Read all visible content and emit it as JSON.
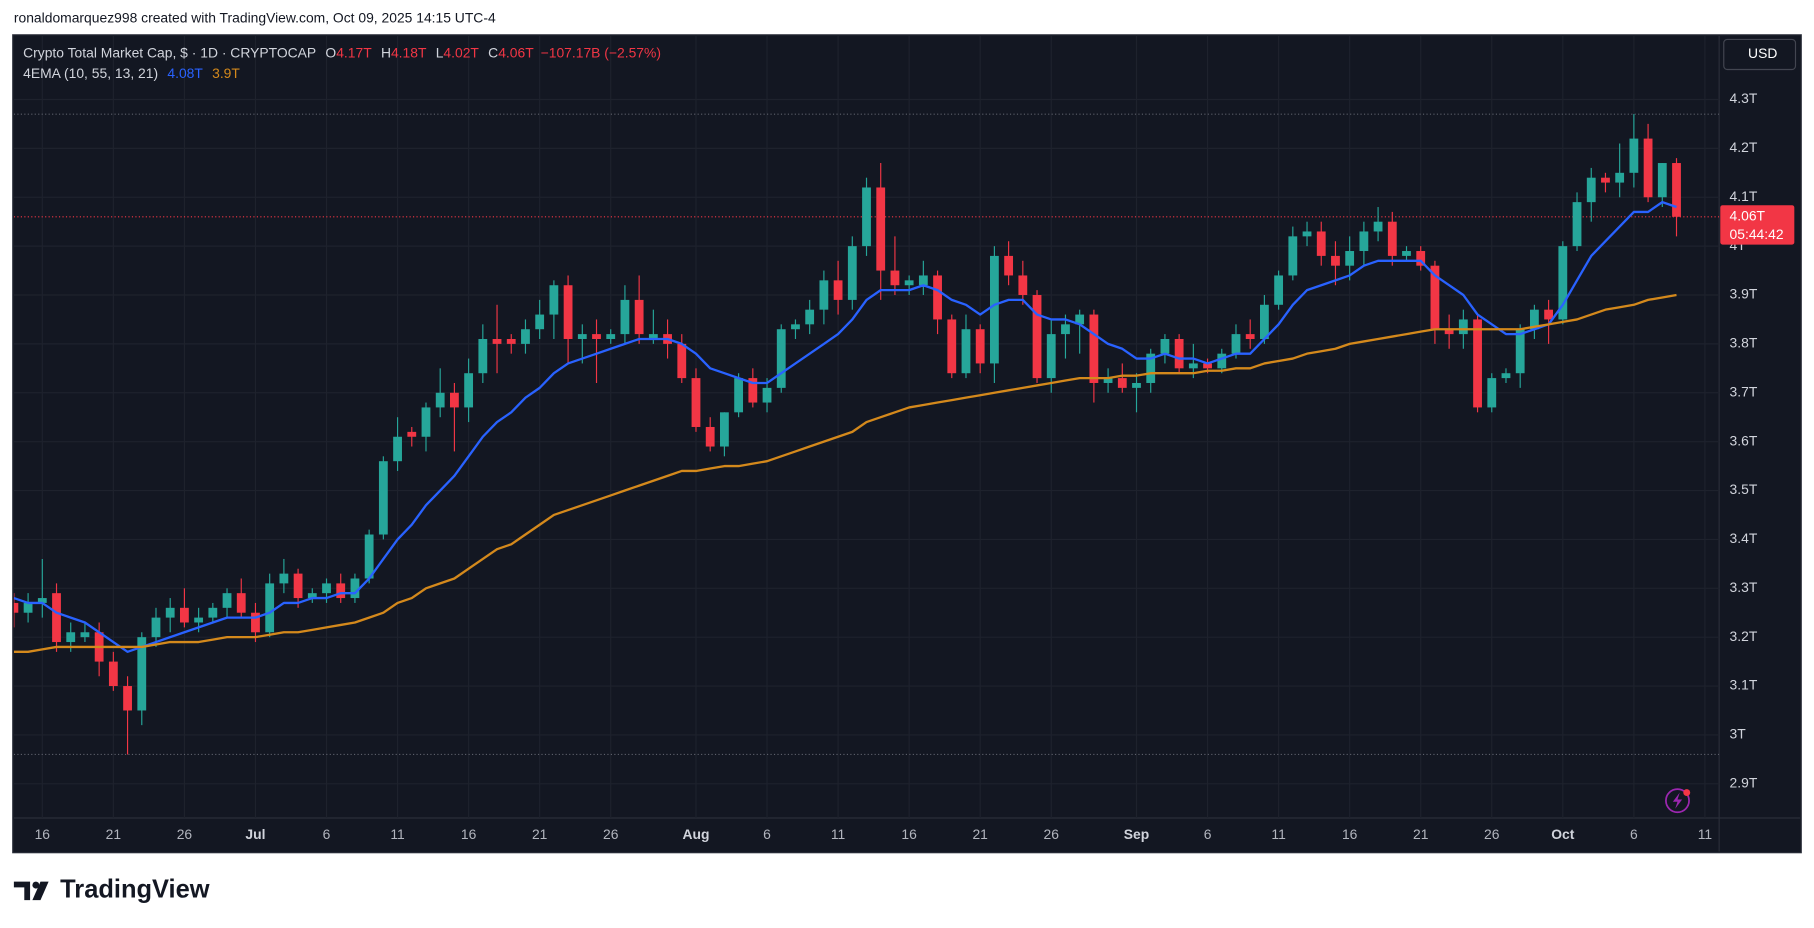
{
  "attribution": "ronaldomarquez998 created with TradingView.com, Oct 09, 2025 14:15 UTC-4",
  "currency_button": "USD",
  "logo": "TradingView",
  "chart_data": {
    "type": "candlestick",
    "title": "Crypto Total Market Cap, $ · 1D · CRYPTOCAP",
    "ohlc_legend": [
      {
        "key": "O",
        "value": "4.17T"
      },
      {
        "key": "H",
        "value": "4.18T"
      },
      {
        "key": "L",
        "value": "4.02T"
      },
      {
        "key": "C",
        "value": "4.06T"
      }
    ],
    "change": "−107.17B (−2.57%)",
    "indicator_label": "4EMA (10, 55, 13, 21)",
    "price_label": "4.06T",
    "countdown": "05:44:42",
    "up_color": "#26a69a",
    "down_color": "#f23645",
    "grid": true,
    "xlim": [
      "2025-06-14",
      "2025-10-12"
    ],
    "ylim": [
      2.83,
      4.43
    ],
    "yticks": [
      {
        "value": 2.9,
        "label": "2.9T"
      },
      {
        "value": 3.0,
        "label": "3T"
      },
      {
        "value": 3.1,
        "label": "3.1T"
      },
      {
        "value": 3.2,
        "label": "3.2T"
      },
      {
        "value": 3.3,
        "label": "3.3T"
      },
      {
        "value": 3.4,
        "label": "3.4T"
      },
      {
        "value": 3.5,
        "label": "3.5T"
      },
      {
        "value": 3.6,
        "label": "3.6T"
      },
      {
        "value": 3.7,
        "label": "3.7T"
      },
      {
        "value": 3.8,
        "label": "3.8T"
      },
      {
        "value": 3.9,
        "label": "3.9T"
      },
      {
        "value": 4.0,
        "label": "4T"
      },
      {
        "value": 4.1,
        "label": "4.1T"
      },
      {
        "value": 4.2,
        "label": "4.2T"
      },
      {
        "value": 4.3,
        "label": "4.3T"
      }
    ],
    "xticks": [
      {
        "value": "2025-06-16",
        "label": "16"
      },
      {
        "value": "2025-06-21",
        "label": "21"
      },
      {
        "value": "2025-06-26",
        "label": "26"
      },
      {
        "value": "2025-07-01",
        "label": "Jul"
      },
      {
        "value": "2025-07-06",
        "label": "6"
      },
      {
        "value": "2025-07-11",
        "label": "11"
      },
      {
        "value": "2025-07-16",
        "label": "16"
      },
      {
        "value": "2025-07-21",
        "label": "21"
      },
      {
        "value": "2025-07-26",
        "label": "26"
      },
      {
        "value": "2025-08-01",
        "label": "Aug"
      },
      {
        "value": "2025-08-06",
        "label": "6"
      },
      {
        "value": "2025-08-11",
        "label": "11"
      },
      {
        "value": "2025-08-16",
        "label": "16"
      },
      {
        "value": "2025-08-21",
        "label": "21"
      },
      {
        "value": "2025-08-26",
        "label": "26"
      },
      {
        "value": "2025-09-01",
        "label": "Sep"
      },
      {
        "value": "2025-09-06",
        "label": "6"
      },
      {
        "value": "2025-09-11",
        "label": "11"
      },
      {
        "value": "2025-09-16",
        "label": "16"
      },
      {
        "value": "2025-09-21",
        "label": "21"
      },
      {
        "value": "2025-09-26",
        "label": "26"
      },
      {
        "value": "2025-10-01",
        "label": "Oct"
      },
      {
        "value": "2025-10-06",
        "label": "6"
      },
      {
        "value": "2025-10-11",
        "label": "11"
      }
    ],
    "x": [
      "2025-06-14",
      "2025-06-15",
      "2025-06-16",
      "2025-06-17",
      "2025-06-18",
      "2025-06-19",
      "2025-06-20",
      "2025-06-21",
      "2025-06-22",
      "2025-06-23",
      "2025-06-24",
      "2025-06-25",
      "2025-06-26",
      "2025-06-27",
      "2025-06-28",
      "2025-06-29",
      "2025-06-30",
      "2025-07-01",
      "2025-07-02",
      "2025-07-03",
      "2025-07-04",
      "2025-07-05",
      "2025-07-06",
      "2025-07-07",
      "2025-07-08",
      "2025-07-09",
      "2025-07-10",
      "2025-07-11",
      "2025-07-12",
      "2025-07-13",
      "2025-07-14",
      "2025-07-15",
      "2025-07-16",
      "2025-07-17",
      "2025-07-18",
      "2025-07-19",
      "2025-07-20",
      "2025-07-21",
      "2025-07-22",
      "2025-07-23",
      "2025-07-24",
      "2025-07-25",
      "2025-07-26",
      "2025-07-27",
      "2025-07-28",
      "2025-07-29",
      "2025-07-30",
      "2025-07-31",
      "2025-08-01",
      "2025-08-02",
      "2025-08-03",
      "2025-08-04",
      "2025-08-05",
      "2025-08-06",
      "2025-08-07",
      "2025-08-08",
      "2025-08-09",
      "2025-08-10",
      "2025-08-11",
      "2025-08-12",
      "2025-08-13",
      "2025-08-14",
      "2025-08-15",
      "2025-08-16",
      "2025-08-17",
      "2025-08-18",
      "2025-08-19",
      "2025-08-20",
      "2025-08-21",
      "2025-08-22",
      "2025-08-23",
      "2025-08-24",
      "2025-08-25",
      "2025-08-26",
      "2025-08-27",
      "2025-08-28",
      "2025-08-29",
      "2025-08-30",
      "2025-08-31",
      "2025-09-01",
      "2025-09-02",
      "2025-09-03",
      "2025-09-04",
      "2025-09-05",
      "2025-09-06",
      "2025-09-07",
      "2025-09-08",
      "2025-09-09",
      "2025-09-10",
      "2025-09-11",
      "2025-09-12",
      "2025-09-13",
      "2025-09-14",
      "2025-09-15",
      "2025-09-16",
      "2025-09-17",
      "2025-09-18",
      "2025-09-19",
      "2025-09-20",
      "2025-09-21",
      "2025-09-22",
      "2025-09-23",
      "2025-09-24",
      "2025-09-25",
      "2025-09-26",
      "2025-09-27",
      "2025-09-28",
      "2025-09-29",
      "2025-09-30",
      "2025-10-01",
      "2025-10-02",
      "2025-10-03",
      "2025-10-04",
      "2025-10-05",
      "2025-10-06",
      "2025-10-07",
      "2025-10-08",
      "2025-10-09"
    ],
    "open": [
      3.27,
      3.25,
      3.27,
      3.29,
      3.19,
      3.2,
      3.21,
      3.15,
      3.1,
      3.05,
      3.2,
      3.24,
      3.26,
      3.23,
      3.24,
      3.26,
      3.29,
      3.25,
      3.21,
      3.31,
      3.33,
      3.28,
      3.29,
      3.31,
      3.28,
      3.32,
      3.41,
      3.56,
      3.62,
      3.61,
      3.67,
      3.7,
      3.67,
      3.74,
      3.81,
      3.81,
      3.8,
      3.83,
      3.86,
      3.92,
      3.81,
      3.82,
      3.81,
      3.82,
      3.89,
      3.81,
      3.82,
      3.8,
      3.73,
      3.63,
      3.59,
      3.66,
      3.73,
      3.68,
      3.71,
      3.83,
      3.84,
      3.87,
      3.93,
      3.89,
      4.0,
      4.12,
      3.95,
      3.92,
      3.92,
      3.94,
      3.85,
      3.74,
      3.83,
      3.76,
      3.98,
      3.94,
      3.9,
      3.73,
      3.82,
      3.84,
      3.86,
      3.72,
      3.73,
      3.71,
      3.72,
      3.78,
      3.81,
      3.75,
      3.76,
      3.75,
      3.78,
      3.82,
      3.81,
      3.88,
      3.94,
      4.02,
      4.03,
      3.98,
      3.96,
      3.99,
      4.03,
      4.05,
      3.98,
      3.99,
      3.96,
      3.83,
      3.82,
      3.85,
      3.67,
      3.73,
      3.74,
      3.83,
      3.87,
      3.85,
      4.0,
      4.09,
      4.14,
      4.13,
      4.15,
      4.22,
      4.1,
      4.17
    ],
    "high": [
      3.29,
      3.29,
      3.36,
      3.31,
      3.23,
      3.23,
      3.23,
      3.17,
      3.12,
      3.21,
      3.26,
      3.28,
      3.3,
      3.26,
      3.27,
      3.3,
      3.32,
      3.27,
      3.33,
      3.36,
      3.34,
      3.3,
      3.32,
      3.33,
      3.33,
      3.42,
      3.57,
      3.65,
      3.63,
      3.68,
      3.75,
      3.72,
      3.77,
      3.84,
      3.88,
      3.82,
      3.85,
      3.89,
      3.93,
      3.94,
      3.84,
      3.85,
      3.83,
      3.92,
      3.94,
      3.87,
      3.85,
      3.82,
      3.75,
      3.65,
      3.66,
      3.74,
      3.75,
      3.73,
      3.84,
      3.85,
      3.89,
      3.95,
      3.97,
      4.02,
      4.14,
      4.17,
      4.02,
      3.94,
      3.97,
      3.95,
      3.86,
      3.86,
      3.84,
      4.0,
      4.01,
      3.97,
      3.91,
      3.85,
      3.86,
      3.87,
      3.87,
      3.75,
      3.76,
      3.74,
      3.79,
      3.82,
      3.82,
      3.8,
      3.77,
      3.79,
      3.84,
      3.85,
      3.9,
      3.95,
      4.04,
      4.05,
      4.05,
      4.01,
      4.02,
      4.05,
      4.08,
      4.07,
      4.0,
      4.0,
      3.97,
      3.86,
      3.87,
      3.86,
      3.74,
      3.75,
      3.84,
      3.88,
      3.89,
      4.01,
      4.11,
      4.16,
      4.15,
      4.21,
      4.27,
      4.25,
      4.17,
      4.18
    ],
    "low": [
      3.22,
      3.23,
      3.24,
      3.17,
      3.17,
      3.19,
      3.12,
      3.09,
      2.96,
      3.02,
      3.18,
      3.21,
      3.22,
      3.21,
      3.23,
      3.24,
      3.24,
      3.19,
      3.2,
      3.29,
      3.26,
      3.27,
      3.27,
      3.27,
      3.27,
      3.31,
      3.4,
      3.54,
      3.59,
      3.58,
      3.65,
      3.58,
      3.64,
      3.72,
      3.74,
      3.78,
      3.78,
      3.81,
      3.81,
      3.76,
      3.76,
      3.72,
      3.8,
      3.8,
      3.8,
      3.8,
      3.77,
      3.72,
      3.62,
      3.58,
      3.57,
      3.65,
      3.67,
      3.66,
      3.7,
      3.81,
      3.82,
      3.84,
      3.86,
      3.87,
      3.98,
      3.89,
      3.9,
      3.9,
      3.9,
      3.82,
      3.73,
      3.73,
      3.74,
      3.72,
      3.92,
      3.88,
      3.72,
      3.7,
      3.77,
      3.78,
      3.68,
      3.7,
      3.7,
      3.66,
      3.7,
      3.76,
      3.74,
      3.73,
      3.74,
      3.74,
      3.77,
      3.79,
      3.8,
      3.87,
      3.93,
      4.0,
      3.96,
      3.92,
      3.93,
      3.96,
      4.01,
      3.96,
      3.97,
      3.95,
      3.8,
      3.79,
      3.79,
      3.66,
      3.66,
      3.72,
      3.71,
      3.81,
      3.8,
      3.84,
      3.99,
      4.05,
      4.11,
      4.1,
      4.12,
      4.09,
      4.08,
      4.02
    ],
    "close": [
      3.25,
      3.27,
      3.28,
      3.19,
      3.21,
      3.21,
      3.15,
      3.1,
      3.05,
      3.2,
      3.24,
      3.26,
      3.23,
      3.24,
      3.26,
      3.29,
      3.25,
      3.21,
      3.31,
      3.33,
      3.28,
      3.29,
      3.31,
      3.28,
      3.32,
      3.41,
      3.56,
      3.61,
      3.61,
      3.67,
      3.7,
      3.67,
      3.74,
      3.81,
      3.8,
      3.8,
      3.83,
      3.86,
      3.92,
      3.81,
      3.82,
      3.81,
      3.82,
      3.89,
      3.82,
      3.82,
      3.8,
      3.73,
      3.63,
      3.59,
      3.66,
      3.73,
      3.68,
      3.71,
      3.83,
      3.84,
      3.87,
      3.93,
      3.89,
      4.0,
      4.12,
      3.95,
      3.92,
      3.93,
      3.94,
      3.85,
      3.74,
      3.83,
      3.76,
      3.98,
      3.94,
      3.9,
      3.73,
      3.82,
      3.84,
      3.86,
      3.72,
      3.73,
      3.71,
      3.72,
      3.78,
      3.81,
      3.75,
      3.76,
      3.75,
      3.78,
      3.82,
      3.81,
      3.88,
      3.94,
      4.02,
      4.03,
      3.98,
      3.96,
      3.99,
      4.03,
      4.05,
      3.98,
      3.99,
      3.96,
      3.83,
      3.82,
      3.85,
      3.67,
      3.73,
      3.74,
      3.83,
      3.87,
      3.85,
      4.0,
      4.09,
      4.14,
      4.13,
      4.15,
      4.22,
      4.1,
      4.17,
      4.06
    ],
    "series": [
      {
        "color": "#2962ff",
        "legend_value": "4.08T",
        "values": [
          3.28,
          3.27,
          3.27,
          3.25,
          3.24,
          3.23,
          3.21,
          3.19,
          3.17,
          3.18,
          3.19,
          3.2,
          3.21,
          3.22,
          3.23,
          3.24,
          3.24,
          3.24,
          3.25,
          3.27,
          3.27,
          3.28,
          3.28,
          3.29,
          3.29,
          3.32,
          3.36,
          3.4,
          3.43,
          3.47,
          3.5,
          3.53,
          3.57,
          3.61,
          3.64,
          3.66,
          3.69,
          3.71,
          3.74,
          3.76,
          3.77,
          3.78,
          3.79,
          3.8,
          3.81,
          3.81,
          3.81,
          3.8,
          3.78,
          3.75,
          3.74,
          3.73,
          3.72,
          3.72,
          3.74,
          3.76,
          3.78,
          3.8,
          3.82,
          3.85,
          3.89,
          3.91,
          3.91,
          3.91,
          3.92,
          3.91,
          3.89,
          3.88,
          3.86,
          3.88,
          3.89,
          3.89,
          3.86,
          3.85,
          3.85,
          3.84,
          3.82,
          3.8,
          3.79,
          3.77,
          3.77,
          3.78,
          3.77,
          3.77,
          3.76,
          3.77,
          3.78,
          3.78,
          3.81,
          3.84,
          3.88,
          3.91,
          3.92,
          3.93,
          3.94,
          3.96,
          3.97,
          3.97,
          3.97,
          3.97,
          3.94,
          3.92,
          3.9,
          3.86,
          3.84,
          3.82,
          3.82,
          3.83,
          3.84,
          3.88,
          3.93,
          3.98,
          4.01,
          4.04,
          4.07,
          4.07,
          4.09,
          4.08
        ]
      },
      {
        "color": "#d4891c",
        "legend_value": "3.9T",
        "values": [
          3.17,
          3.17,
          3.175,
          3.18,
          3.18,
          3.18,
          3.18,
          3.18,
          3.18,
          3.18,
          3.185,
          3.19,
          3.19,
          3.19,
          3.195,
          3.2,
          3.2,
          3.2,
          3.205,
          3.21,
          3.21,
          3.215,
          3.22,
          3.225,
          3.23,
          3.24,
          3.25,
          3.27,
          3.28,
          3.3,
          3.31,
          3.32,
          3.34,
          3.36,
          3.38,
          3.39,
          3.41,
          3.43,
          3.45,
          3.46,
          3.47,
          3.48,
          3.49,
          3.5,
          3.51,
          3.52,
          3.53,
          3.54,
          3.54,
          3.545,
          3.55,
          3.55,
          3.555,
          3.56,
          3.57,
          3.58,
          3.59,
          3.6,
          3.61,
          3.62,
          3.64,
          3.65,
          3.66,
          3.67,
          3.675,
          3.68,
          3.685,
          3.69,
          3.695,
          3.7,
          3.705,
          3.71,
          3.715,
          3.72,
          3.725,
          3.73,
          3.73,
          3.73,
          3.735,
          3.735,
          3.74,
          3.74,
          3.74,
          3.74,
          3.745,
          3.745,
          3.75,
          3.75,
          3.76,
          3.765,
          3.77,
          3.78,
          3.785,
          3.79,
          3.8,
          3.805,
          3.81,
          3.815,
          3.82,
          3.825,
          3.83,
          3.83,
          3.83,
          3.83,
          3.83,
          3.83,
          3.83,
          3.835,
          3.84,
          3.845,
          3.85,
          3.86,
          3.87,
          3.875,
          3.88,
          3.89,
          3.895,
          3.9
        ]
      }
    ]
  }
}
